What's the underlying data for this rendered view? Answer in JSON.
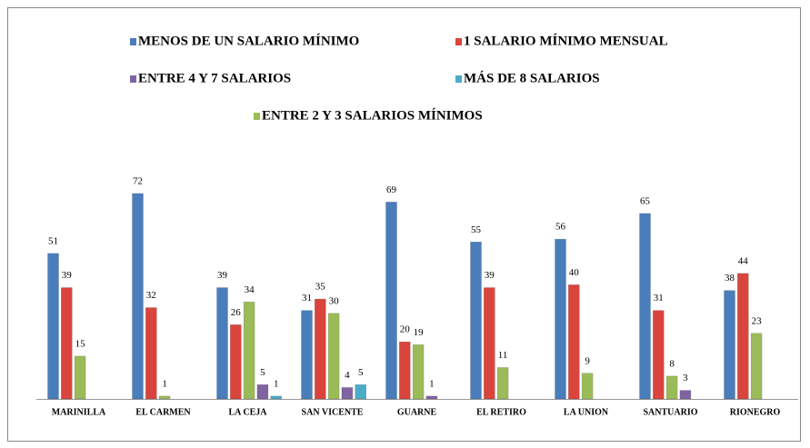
{
  "chart_data": {
    "type": "bar",
    "categories": [
      "MARINILLA",
      "EL CARMEN",
      "LA CEJA",
      "SAN VICENTE",
      "GUARNE",
      "EL RETIRO",
      "LA UNION",
      "SANTUARIO",
      "RIONEGRO"
    ],
    "series": [
      {
        "name": "MENOS DE UN SALARIO MÍNIMO",
        "color": "#4a7ebb",
        "values": [
          51,
          72,
          39,
          31,
          69,
          55,
          56,
          65,
          38
        ]
      },
      {
        "name": "1 SALARIO MÍNIMO MENSUAL",
        "color": "#d9453d",
        "values": [
          39,
          32,
          26,
          35,
          20,
          39,
          40,
          31,
          44
        ]
      },
      {
        "name": "ENTRE 2 Y 3 SALARIOS MÍNIMOS",
        "color": "#9bbb59",
        "values": [
          15,
          1,
          34,
          30,
          19,
          11,
          9,
          8,
          23
        ]
      },
      {
        "name": "ENTRE 4 Y 7 SALARIOS",
        "color": "#8064a2",
        "values": [
          null,
          null,
          5,
          4,
          1,
          null,
          null,
          3,
          null
        ]
      },
      {
        "name": "MÁS DE 8 SALARIOS",
        "color": "#4bacc6",
        "values": [
          null,
          null,
          1,
          5,
          null,
          null,
          null,
          null,
          null
        ]
      }
    ]
  }
}
